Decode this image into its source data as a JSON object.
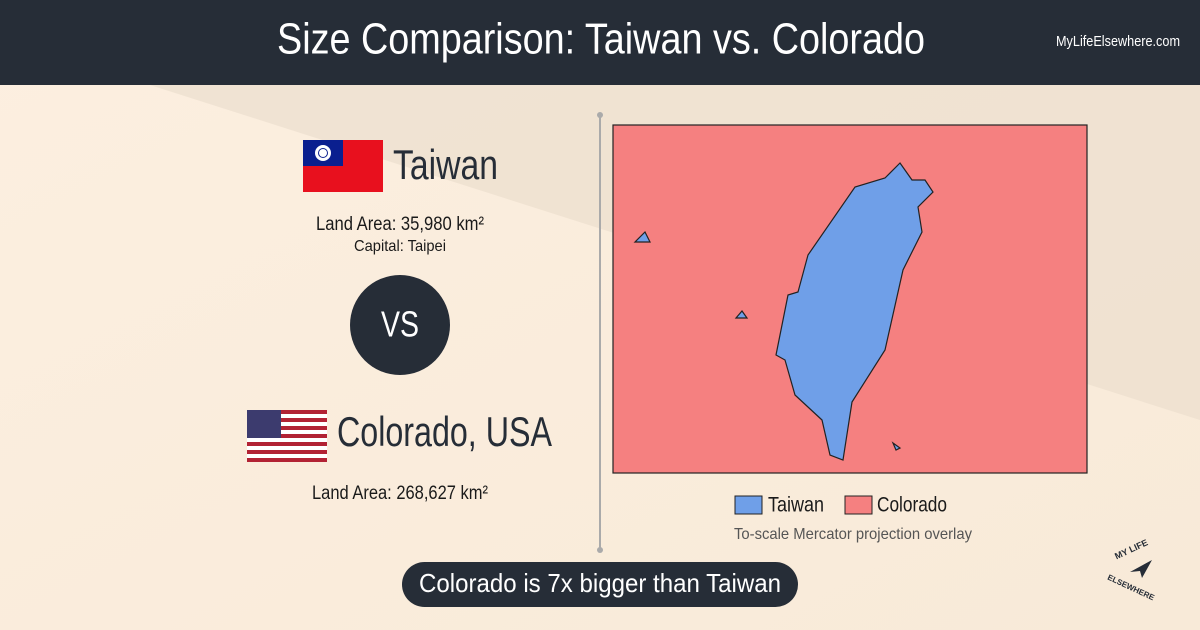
{
  "header": {
    "title": "Size Comparison: Taiwan vs. Colorado",
    "site": "MyLifeElsewhere.com"
  },
  "left": {
    "country1": {
      "name": "Taiwan",
      "land_area": "Land Area: 35,980 km²",
      "capital": "Capital: Taipei"
    },
    "vs": "VS",
    "country2": {
      "name": "Colorado, USA",
      "land_area": "Land Area: 268,627 km²"
    }
  },
  "map": {
    "legend": [
      {
        "label": "Taiwan",
        "color": "#6f9fe8"
      },
      {
        "label": "Colorado",
        "color": "#f58080"
      }
    ],
    "caption": "To-scale Mercator projection overlay"
  },
  "footer": {
    "comparison": "Colorado is 7x bigger than Taiwan"
  },
  "logo": {
    "line1": "MY LIFE",
    "line2": "ELSEWHERE"
  }
}
